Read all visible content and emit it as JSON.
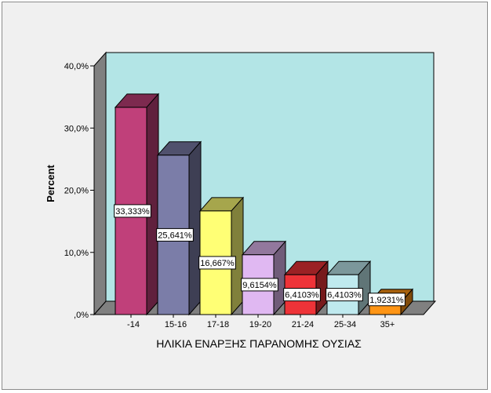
{
  "chart_data": {
    "type": "bar",
    "categories": [
      "-14",
      "15-16",
      "17-18",
      "19-20",
      "21-24",
      "25-34",
      "35+"
    ],
    "values": [
      33.333,
      25.641,
      16.667,
      9.6154,
      6.4103,
      6.4103,
      1.9231
    ],
    "data_labels": [
      "33,333%",
      "25,641%",
      "16,667%",
      "9,6154%",
      "6,4103%",
      "6,4103%",
      "1,9231%"
    ],
    "xlabel": "ΗΛΙΚΙΑ ΕΝΑΡΞΗΣ ΠΑΡΑΝΟΜΗΣ ΟΥΣΙΑΣ",
    "ylabel": "Percent",
    "ylim": [
      0,
      40
    ],
    "yticks": [
      0,
      10,
      20,
      30,
      40
    ],
    "ytick_labels": [
      ",0%",
      "10,0%",
      "20,0%",
      "30,0%",
      "40,0%"
    ],
    "grid": false,
    "style": "3d",
    "colors": {
      "back_wall": "#b3e5e6",
      "side_wall": "#808080",
      "floor": "#808080",
      "bars": [
        "#c0407a",
        "#7b7da8",
        "#ffff75",
        "#e0b8f2",
        "#ee3338",
        "#bfe9ee",
        "#ff9515"
      ]
    }
  }
}
